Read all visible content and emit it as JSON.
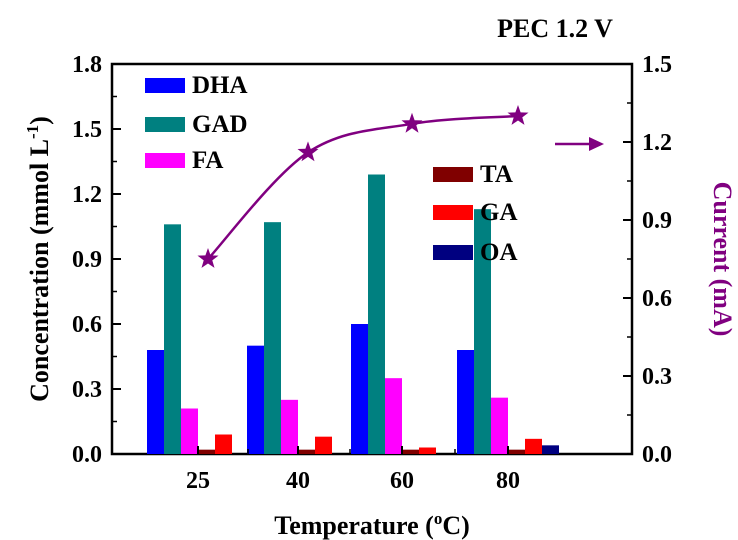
{
  "chart_data": {
    "type": "bar",
    "annotation": "PEC 1.2 V",
    "xlabel": "Temperature (",
    "xlabel_sup": "o",
    "xlabel_end": "C)",
    "ylabel_left": "Concentration (mmol L",
    "ylabel_left_sup": "-1",
    "ylabel_left_end": ")",
    "ylabel_right": "Current (mA)",
    "ylim_left": [
      0,
      1.8
    ],
    "yticks_left": [
      "0.0",
      "0.3",
      "0.6",
      "0.9",
      "1.2",
      "1.5",
      "1.8"
    ],
    "ylim_right": [
      0,
      1.5
    ],
    "yticks_right": [
      "0.0",
      "0.3",
      "0.6",
      "0.9",
      "1.2",
      "1.5"
    ],
    "categories": [
      "25",
      "40",
      "60",
      "80"
    ],
    "series": [
      {
        "name": "DHA",
        "color": "#0000ff",
        "values": [
          0.48,
          0.5,
          0.6,
          0.48
        ]
      },
      {
        "name": "GAD",
        "color": "#008080",
        "values": [
          1.06,
          1.07,
          1.29,
          1.13
        ]
      },
      {
        "name": "FA",
        "color": "#ff00ff",
        "values": [
          0.21,
          0.25,
          0.35,
          0.26
        ]
      },
      {
        "name": "TA",
        "color": "#800000",
        "values": [
          0.02,
          0.02,
          0.02,
          0.02
        ]
      },
      {
        "name": "GA",
        "color": "#ff0000",
        "values": [
          0.09,
          0.08,
          0.03,
          0.07
        ]
      },
      {
        "name": "OA",
        "color": "#000080",
        "values": [
          0.0,
          0.0,
          0.0,
          0.04
        ]
      }
    ],
    "line_series": {
      "axis": "right",
      "color": "#800080",
      "marker": "star",
      "values": [
        0.75,
        1.16,
        1.27,
        1.3
      ]
    }
  }
}
